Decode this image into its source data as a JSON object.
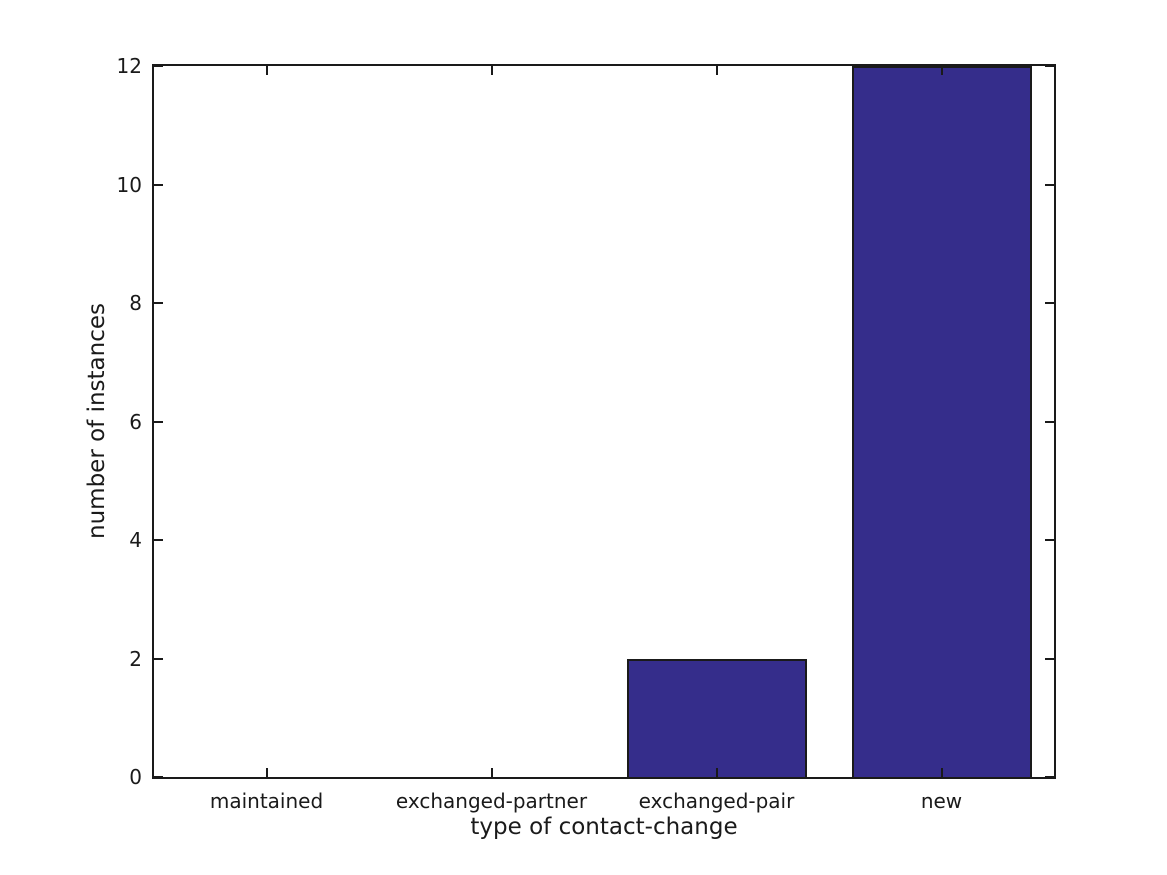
{
  "chart_data": {
    "type": "bar",
    "title": "",
    "categories": [
      "maintained",
      "exchanged-partner",
      "exchanged-pair",
      "new"
    ],
    "values": [
      0,
      0,
      2,
      12
    ],
    "xlabel": "type of contact-change",
    "ylabel": "number of instances",
    "ylim": [
      0,
      12
    ],
    "yticks": [
      0,
      2,
      4,
      6,
      8,
      10,
      12
    ],
    "bar_width_fraction": 0.8,
    "bar_color": "#352d8b",
    "bar_edge_color": "#1a1a1a",
    "axis_color": "#1a1a1a",
    "text_color": "#1a1a1a",
    "background_color": "#ffffff",
    "grid": false,
    "legend": null,
    "tick_direction": "in",
    "ticks_on_all_sides": true
  }
}
